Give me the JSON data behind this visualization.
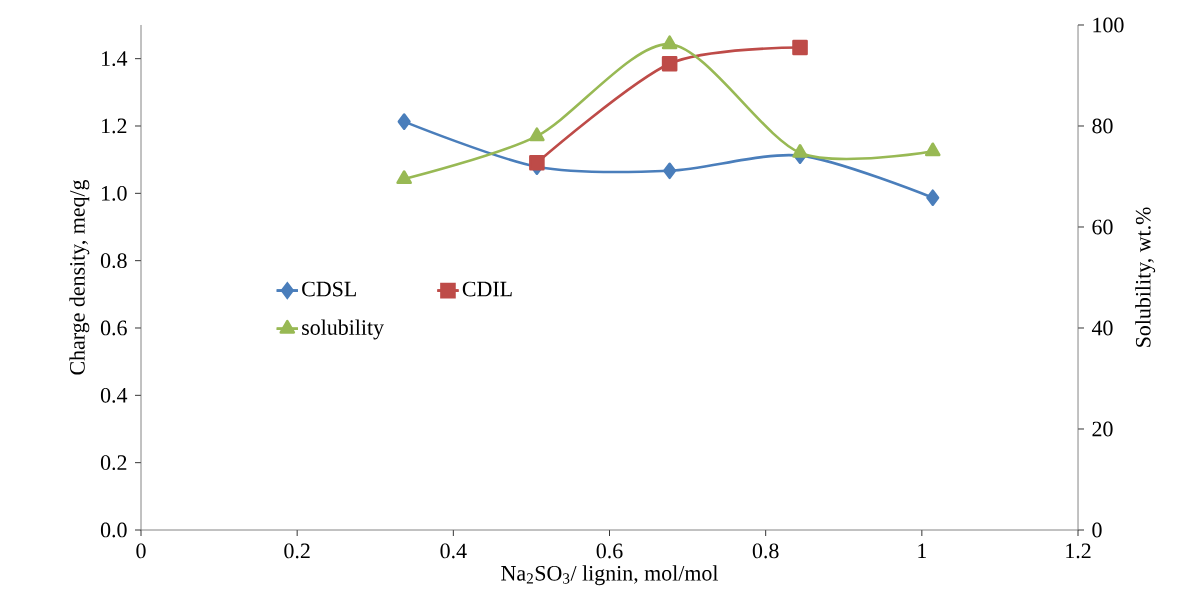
{
  "chart_data": {
    "type": "line",
    "xlabel": "Na$_{2}$SO$_{3}$/ lignin, mol/mol",
    "ylabel": "Charge density, meq/g",
    "y2label": "Solubility, wt.%",
    "x": [
      0.337,
      0.507,
      0.677,
      0.844,
      1.014
    ],
    "series": [
      {
        "name": "CDSL",
        "color": "#4a7ebb",
        "marker": "diamond",
        "values": [
          1.213,
          1.079,
          1.067,
          1.112,
          0.987
        ]
      },
      {
        "name": "CDIL",
        "color": "#be4b48",
        "marker": "square",
        "values": [
          null,
          1.091,
          1.385,
          1.433,
          null
        ]
      },
      {
        "name": "solubility",
        "color": "#98b954",
        "marker": "triangle",
        "axis": "y2",
        "values": [
          69.5,
          78.0,
          96.2,
          74.7,
          75.0
        ]
      }
    ],
    "xlim": [
      0,
      1.2
    ],
    "xticks": [
      0,
      0.2,
      0.4,
      0.6,
      0.8,
      1,
      1.2
    ],
    "ylim": [
      0,
      1.5
    ],
    "yticks": [
      {
        "value": 0,
        "label": "0.0"
      },
      {
        "value": 0.2,
        "label": "0.2"
      },
      {
        "value": 0.4,
        "label": "0.4"
      },
      {
        "value": 0.6,
        "label": "0.6"
      },
      {
        "value": 0.8,
        "label": "0.8"
      },
      {
        "value": 1.0,
        "label": "1.0"
      },
      {
        "value": 1.2,
        "label": "1.2"
      },
      {
        "value": 1.4,
        "label": "1.4"
      }
    ],
    "y2lim": [
      0,
      100
    ],
    "y2ticks": [
      0,
      20,
      40,
      60,
      80,
      100
    ],
    "legend": "left",
    "grid": false
  }
}
